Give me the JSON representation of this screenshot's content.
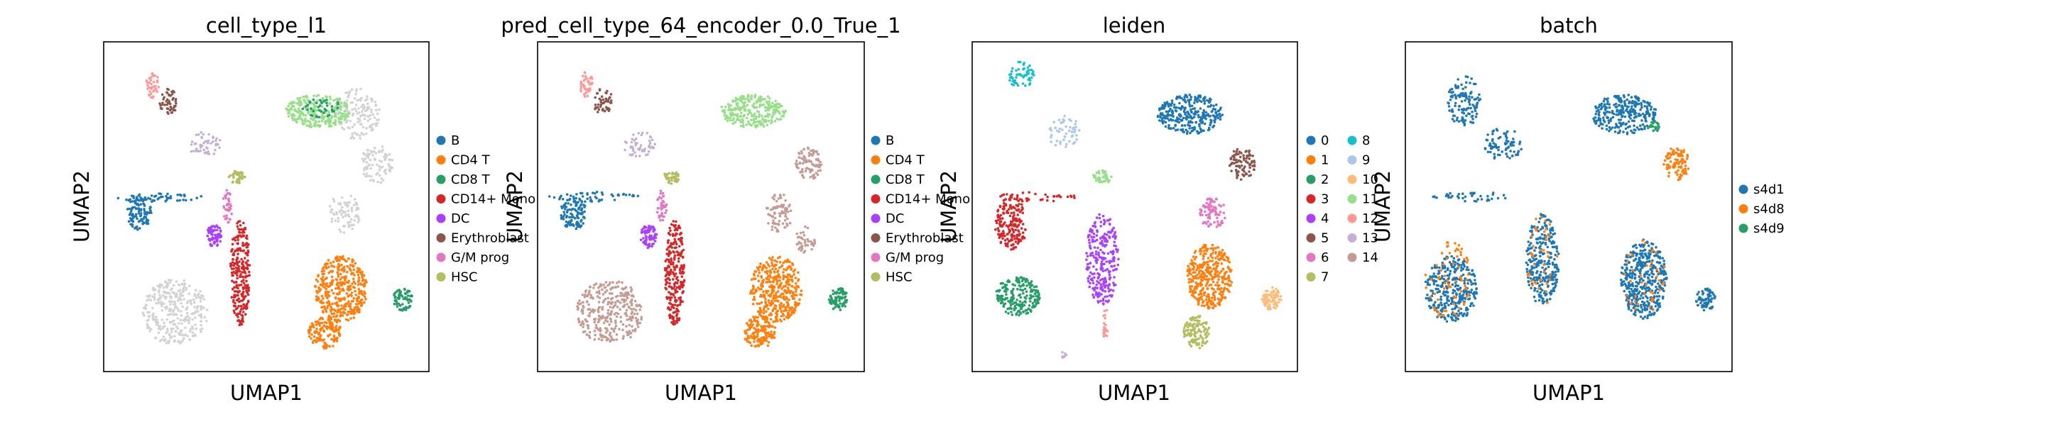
{
  "chart_data": [
    {
      "type": "scatter",
      "title": "cell_type_l1",
      "xlabel": "UMAP1",
      "ylabel": "UMAP2",
      "legend": {
        "placement": "right",
        "entries": [
          {
            "label": "B",
            "color": "#1f77b4"
          },
          {
            "label": "CD4 T",
            "color": "#ff7f0e"
          },
          {
            "label": "CD8 T",
            "color": "#279e68"
          },
          {
            "label": "CD14+ Mono",
            "color": "#d62728"
          },
          {
            "label": "DC",
            "color": "#aa40fc"
          },
          {
            "label": "Erythroblast",
            "color": "#8c564b"
          },
          {
            "label": "G/M prog",
            "color": "#e377c2"
          },
          {
            "label": "HSC",
            "color": "#b5bd61"
          }
        ]
      },
      "clusters": [
        {
          "c": "#d3d3d3",
          "cx": 0.22,
          "cy": 0.82,
          "rx": 0.1,
          "ry": 0.1,
          "n": 320
        },
        {
          "c": "#d3d3d3",
          "cx": 0.78,
          "cy": 0.22,
          "rx": 0.07,
          "ry": 0.08,
          "n": 140
        },
        {
          "c": "#d3d3d3",
          "cx": 0.84,
          "cy": 0.37,
          "rx": 0.05,
          "ry": 0.06,
          "n": 90
        },
        {
          "c": "#d3d3d3",
          "cx": 0.74,
          "cy": 0.52,
          "rx": 0.05,
          "ry": 0.06,
          "n": 80
        },
        {
          "c": "#1f77b4",
          "cx": 0.11,
          "cy": 0.52,
          "rx": 0.04,
          "ry": 0.05,
          "n": 110
        },
        {
          "c": "#1f77b4",
          "cx": 0.17,
          "cy": 0.47,
          "rx": 0.14,
          "ry": 0.015,
          "n": 50
        },
        {
          "c": "#ff7f0e",
          "cx": 0.73,
          "cy": 0.75,
          "rx": 0.08,
          "ry": 0.1,
          "n": 380
        },
        {
          "c": "#ff7f0e",
          "cx": 0.68,
          "cy": 0.88,
          "rx": 0.05,
          "ry": 0.05,
          "n": 140
        },
        {
          "c": "#279e68",
          "cx": 0.92,
          "cy": 0.78,
          "rx": 0.03,
          "ry": 0.035,
          "n": 80
        },
        {
          "c": "#98df8a",
          "cx": 0.66,
          "cy": 0.21,
          "rx": 0.1,
          "ry": 0.05,
          "n": 260
        },
        {
          "c": "#279e68",
          "cx": 0.67,
          "cy": 0.2,
          "rx": 0.06,
          "ry": 0.03,
          "n": 40
        },
        {
          "c": "#d62728",
          "cx": 0.42,
          "cy": 0.7,
          "rx": 0.03,
          "ry": 0.16,
          "n": 260
        },
        {
          "c": "#aa40fc",
          "cx": 0.34,
          "cy": 0.59,
          "rx": 0.025,
          "ry": 0.035,
          "n": 70
        },
        {
          "c": "#e377c2",
          "cx": 0.38,
          "cy": 0.5,
          "rx": 0.015,
          "ry": 0.05,
          "n": 40
        },
        {
          "c": "#b5bd61",
          "cx": 0.41,
          "cy": 0.41,
          "rx": 0.025,
          "ry": 0.02,
          "n": 40
        },
        {
          "c": "#c5b0d5",
          "cx": 0.31,
          "cy": 0.31,
          "rx": 0.05,
          "ry": 0.04,
          "n": 50
        },
        {
          "c": "#8c564b",
          "cx": 0.2,
          "cy": 0.18,
          "rx": 0.03,
          "ry": 0.04,
          "n": 50
        },
        {
          "c": "#ff9896",
          "cx": 0.15,
          "cy": 0.13,
          "rx": 0.02,
          "ry": 0.04,
          "n": 40
        }
      ]
    },
    {
      "type": "scatter",
      "title": "pred_cell_type_64_encoder_0.0_True_1",
      "xlabel": "UMAP1",
      "ylabel": "UMAP2",
      "legend": {
        "placement": "right",
        "entries": [
          {
            "label": "B",
            "color": "#1f77b4"
          },
          {
            "label": "CD4 T",
            "color": "#ff7f0e"
          },
          {
            "label": "CD8 T",
            "color": "#279e68"
          },
          {
            "label": "CD14+ Mono",
            "color": "#d62728"
          },
          {
            "label": "DC",
            "color": "#aa40fc"
          },
          {
            "label": "Erythroblast",
            "color": "#8c564b"
          },
          {
            "label": "G/M prog",
            "color": "#e377c2"
          },
          {
            "label": "HSC",
            "color": "#b5bd61"
          }
        ]
      },
      "clusters": [
        {
          "c": "#c49c94",
          "cx": 0.22,
          "cy": 0.82,
          "rx": 0.1,
          "ry": 0.1,
          "n": 320
        },
        {
          "c": "#c49c94",
          "cx": 0.83,
          "cy": 0.37,
          "rx": 0.04,
          "ry": 0.05,
          "n": 90
        },
        {
          "c": "#c49c94",
          "cx": 0.74,
          "cy": 0.52,
          "rx": 0.04,
          "ry": 0.06,
          "n": 80
        },
        {
          "c": "#c49c94",
          "cx": 0.82,
          "cy": 0.6,
          "rx": 0.03,
          "ry": 0.04,
          "n": 40
        },
        {
          "c": "#1f77b4",
          "cx": 0.11,
          "cy": 0.52,
          "rx": 0.04,
          "ry": 0.05,
          "n": 110
        },
        {
          "c": "#1f77b4",
          "cx": 0.17,
          "cy": 0.47,
          "rx": 0.14,
          "ry": 0.015,
          "n": 50
        },
        {
          "c": "#ff7f0e",
          "cx": 0.73,
          "cy": 0.75,
          "rx": 0.08,
          "ry": 0.1,
          "n": 380
        },
        {
          "c": "#ff7f0e",
          "cx": 0.68,
          "cy": 0.88,
          "rx": 0.05,
          "ry": 0.05,
          "n": 140
        },
        {
          "c": "#279e68",
          "cx": 0.92,
          "cy": 0.78,
          "rx": 0.03,
          "ry": 0.035,
          "n": 80
        },
        {
          "c": "#98df8a",
          "cx": 0.66,
          "cy": 0.21,
          "rx": 0.1,
          "ry": 0.05,
          "n": 260
        },
        {
          "c": "#d62728",
          "cx": 0.42,
          "cy": 0.7,
          "rx": 0.03,
          "ry": 0.16,
          "n": 260
        },
        {
          "c": "#aa40fc",
          "cx": 0.34,
          "cy": 0.59,
          "rx": 0.025,
          "ry": 0.035,
          "n": 70
        },
        {
          "c": "#e377c2",
          "cx": 0.38,
          "cy": 0.5,
          "rx": 0.015,
          "ry": 0.05,
          "n": 40
        },
        {
          "c": "#b5bd61",
          "cx": 0.41,
          "cy": 0.41,
          "rx": 0.025,
          "ry": 0.02,
          "n": 40
        },
        {
          "c": "#c5b0d5",
          "cx": 0.31,
          "cy": 0.31,
          "rx": 0.05,
          "ry": 0.04,
          "n": 50
        },
        {
          "c": "#8c564b",
          "cx": 0.2,
          "cy": 0.18,
          "rx": 0.03,
          "ry": 0.04,
          "n": 50
        },
        {
          "c": "#ff9896",
          "cx": 0.15,
          "cy": 0.13,
          "rx": 0.02,
          "ry": 0.04,
          "n": 40
        }
      ]
    },
    {
      "type": "scatter",
      "title": "leiden",
      "xlabel": "UMAP1",
      "ylabel": "UMAP2",
      "legend": {
        "placement": "right",
        "columns": 2,
        "entries": [
          {
            "label": "0",
            "color": "#1f77b4"
          },
          {
            "label": "1",
            "color": "#ff7f0e"
          },
          {
            "label": "2",
            "color": "#279e68"
          },
          {
            "label": "3",
            "color": "#d62728"
          },
          {
            "label": "4",
            "color": "#aa40fc"
          },
          {
            "label": "5",
            "color": "#8c564b"
          },
          {
            "label": "6",
            "color": "#e377c2"
          },
          {
            "label": "7",
            "color": "#b5bd61"
          },
          {
            "label": "8",
            "color": "#17becf"
          },
          {
            "label": "9",
            "color": "#aec7e8"
          },
          {
            "label": "10",
            "color": "#ffbb78"
          },
          {
            "label": "11",
            "color": "#98df8a"
          },
          {
            "label": "12",
            "color": "#ff9896"
          },
          {
            "label": "13",
            "color": "#c5b0d5"
          },
          {
            "label": "14",
            "color": "#c49c94"
          }
        ]
      },
      "clusters": [
        {
          "c": "#1f77b4",
          "cx": 0.67,
          "cy": 0.22,
          "rx": 0.1,
          "ry": 0.06,
          "n": 300
        },
        {
          "c": "#8c564b",
          "cx": 0.83,
          "cy": 0.37,
          "rx": 0.04,
          "ry": 0.05,
          "n": 90
        },
        {
          "c": "#279e68",
          "cx": 0.14,
          "cy": 0.77,
          "rx": 0.07,
          "ry": 0.06,
          "n": 220
        },
        {
          "c": "#d62728",
          "cx": 0.12,
          "cy": 0.55,
          "rx": 0.05,
          "ry": 0.08,
          "n": 180
        },
        {
          "c": "#d62728",
          "cx": 0.2,
          "cy": 0.47,
          "rx": 0.12,
          "ry": 0.015,
          "n": 40
        },
        {
          "c": "#aa40fc",
          "cx": 0.4,
          "cy": 0.66,
          "rx": 0.05,
          "ry": 0.14,
          "n": 260
        },
        {
          "c": "#ff7f0e",
          "cx": 0.73,
          "cy": 0.71,
          "rx": 0.07,
          "ry": 0.1,
          "n": 360
        },
        {
          "c": "#e377c2",
          "cx": 0.74,
          "cy": 0.52,
          "rx": 0.04,
          "ry": 0.05,
          "n": 80
        },
        {
          "c": "#b5bd61",
          "cx": 0.69,
          "cy": 0.88,
          "rx": 0.04,
          "ry": 0.05,
          "n": 120
        },
        {
          "c": "#ffbb78",
          "cx": 0.92,
          "cy": 0.78,
          "rx": 0.03,
          "ry": 0.035,
          "n": 80
        },
        {
          "c": "#17becf",
          "cx": 0.15,
          "cy": 0.1,
          "rx": 0.04,
          "ry": 0.04,
          "n": 60
        },
        {
          "c": "#aec7e8",
          "cx": 0.28,
          "cy": 0.27,
          "rx": 0.05,
          "ry": 0.05,
          "n": 50
        },
        {
          "c": "#98df8a",
          "cx": 0.4,
          "cy": 0.41,
          "rx": 0.03,
          "ry": 0.02,
          "n": 40
        },
        {
          "c": "#ff9896",
          "cx": 0.41,
          "cy": 0.85,
          "rx": 0.01,
          "ry": 0.05,
          "n": 20
        },
        {
          "c": "#c5b0d5",
          "cx": 0.28,
          "cy": 0.95,
          "rx": 0.01,
          "ry": 0.01,
          "n": 8
        }
      ]
    },
    {
      "type": "scatter",
      "title": "batch",
      "xlabel": "UMAP1",
      "ylabel": "UMAP2",
      "legend": {
        "placement": "right",
        "entries": [
          {
            "label": "s4d1",
            "color": "#1f77b4"
          },
          {
            "label": "s4d8",
            "color": "#ff7f0e"
          },
          {
            "label": "s4d9",
            "color": "#279e68"
          }
        ]
      },
      "clusters": [
        {
          "c": "#1f77b4",
          "cx": 0.67,
          "cy": 0.22,
          "rx": 0.1,
          "ry": 0.06,
          "n": 280
        },
        {
          "c": "#ff7f0e",
          "cx": 0.83,
          "cy": 0.37,
          "rx": 0.04,
          "ry": 0.05,
          "n": 90
        },
        {
          "c": "#1f77b4",
          "cx": 0.14,
          "cy": 0.75,
          "rx": 0.08,
          "ry": 0.1,
          "n": 320
        },
        {
          "c": "#ff7f0e",
          "cx": 0.13,
          "cy": 0.72,
          "rx": 0.07,
          "ry": 0.12,
          "n": 70
        },
        {
          "c": "#1f77b4",
          "cx": 0.42,
          "cy": 0.66,
          "rx": 0.05,
          "ry": 0.14,
          "n": 280
        },
        {
          "c": "#ff7f0e",
          "cx": 0.42,
          "cy": 0.66,
          "rx": 0.05,
          "ry": 0.14,
          "n": 40
        },
        {
          "c": "#1f77b4",
          "cx": 0.73,
          "cy": 0.72,
          "rx": 0.07,
          "ry": 0.12,
          "n": 420
        },
        {
          "c": "#ff7f0e",
          "cx": 0.73,
          "cy": 0.72,
          "rx": 0.07,
          "ry": 0.12,
          "n": 40
        },
        {
          "c": "#1f77b4",
          "cx": 0.92,
          "cy": 0.78,
          "rx": 0.03,
          "ry": 0.035,
          "n": 70
        },
        {
          "c": "#279e68",
          "cx": 0.76,
          "cy": 0.26,
          "rx": 0.02,
          "ry": 0.02,
          "n": 20
        },
        {
          "c": "#1f77b4",
          "cx": 0.18,
          "cy": 0.18,
          "rx": 0.05,
          "ry": 0.08,
          "n": 120
        },
        {
          "c": "#1f77b4",
          "cx": 0.3,
          "cy": 0.31,
          "rx": 0.06,
          "ry": 0.05,
          "n": 80
        },
        {
          "c": "#1f77b4",
          "cx": 0.2,
          "cy": 0.47,
          "rx": 0.12,
          "ry": 0.015,
          "n": 40
        }
      ]
    }
  ]
}
